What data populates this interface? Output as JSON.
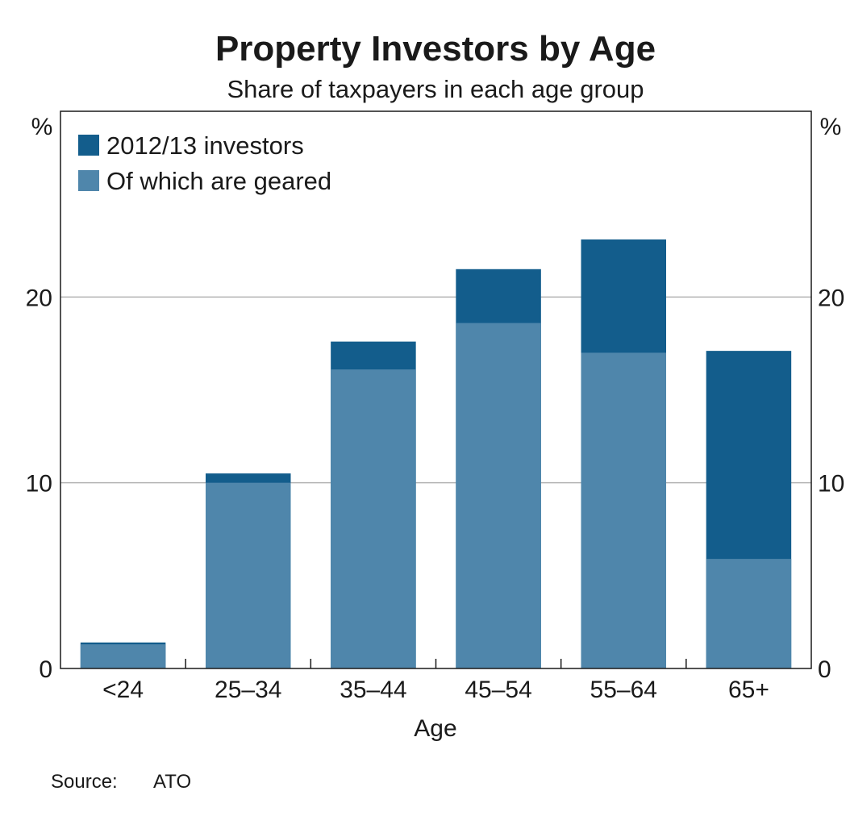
{
  "chart_data": {
    "type": "bar",
    "title": "Property Investors by Age",
    "subtitle": "Share of taxpayers in each age group",
    "xlabel": "Age",
    "ylabel_left": "%",
    "ylabel_right": "%",
    "ylim": [
      0,
      30
    ],
    "yticks": [
      0,
      10,
      20
    ],
    "grid": true,
    "legend_position": "top-left",
    "categories": [
      "<24",
      "25–34",
      "35–44",
      "45–54",
      "55–64",
      "65+"
    ],
    "series": [
      {
        "name": "2012/13 investors",
        "color": "#135d8c",
        "values": [
          1.4,
          10.5,
          17.6,
          21.5,
          23.1,
          17.1
        ]
      },
      {
        "name": "Of which are geared",
        "color": "#4f86ab",
        "values": [
          1.3,
          10.0,
          16.1,
          18.6,
          17.0,
          5.9
        ]
      }
    ],
    "source_label": "Source:",
    "source_value": "ATO"
  }
}
